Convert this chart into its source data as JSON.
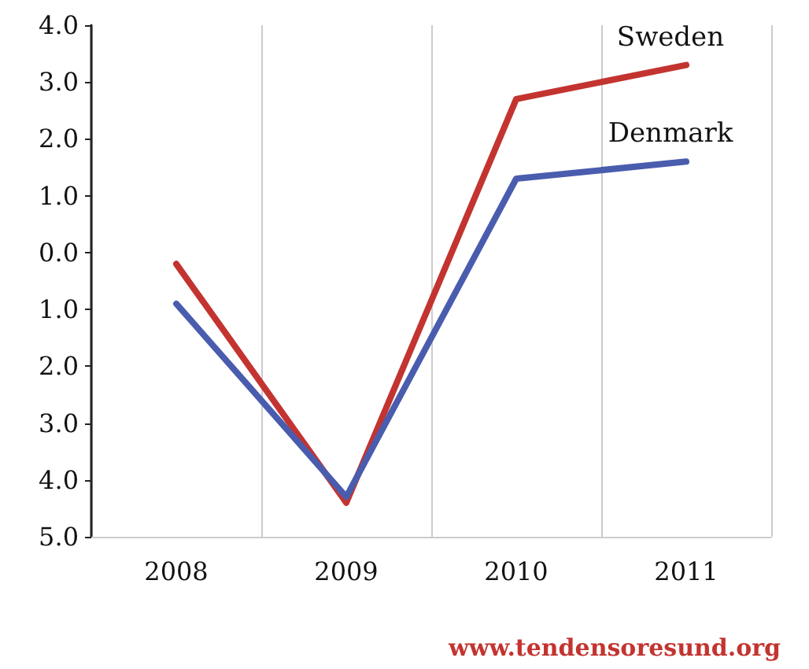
{
  "chart_data": {
    "type": "line",
    "categories": [
      "2008",
      "2009",
      "2010",
      "2011"
    ],
    "series": [
      {
        "name": "Sweden",
        "color": "#c33430",
        "values": [
          -0.2,
          -4.4,
          2.7,
          3.3
        ]
      },
      {
        "name": "Denmark",
        "color": "#4a5cae",
        "values": [
          -0.9,
          -4.3,
          1.3,
          1.6
        ]
      }
    ],
    "ylim": [
      -5,
      4
    ],
    "yticks": [
      {
        "value": -5,
        "label": "5.0"
      },
      {
        "value": -4,
        "label": "4.0"
      },
      {
        "value": -3,
        "label": "3.0"
      },
      {
        "value": -2,
        "label": "2.0"
      },
      {
        "value": -1,
        "label": "1.0"
      },
      {
        "value": 0,
        "label": "0.0"
      },
      {
        "value": 1,
        "label": "1.0"
      },
      {
        "value": 2,
        "label": "2.0"
      },
      {
        "value": 3,
        "label": "3.0"
      },
      {
        "value": 4,
        "label": "4.0"
      }
    ],
    "grid": "x",
    "legend": false,
    "marker": "none",
    "line_style": "solid",
    "annotations": [
      "www.tendensoresund.org"
    ]
  }
}
